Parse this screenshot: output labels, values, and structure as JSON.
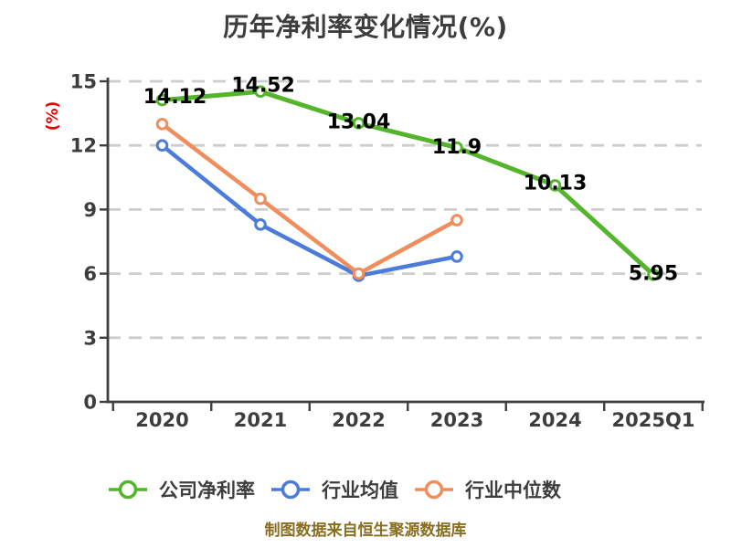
{
  "title": "历年净利率变化情况(%)",
  "source_note": "制图数据来自恒生聚源数据库",
  "colors": {
    "title": "#3d3d3d",
    "axis": "#3f3f3f",
    "tick_label": "#3d3d3d",
    "grid": "#cdcdcd",
    "data_label": "#000000",
    "y_axis_label": "#e60000",
    "footer": "#8a6e20",
    "background": "#ffffff",
    "marker_fill": "#ffffff"
  },
  "chart_data": {
    "type": "line",
    "title": "历年净利率变化情况(%)",
    "ylabel": "(%)",
    "xlabel": "",
    "categories": [
      "2020",
      "2021",
      "2022",
      "2023",
      "2024",
      "2025Q1"
    ],
    "series": [
      {
        "name": "公司净利率",
        "color": "#54b42c",
        "values": [
          14.12,
          14.52,
          13.04,
          11.9,
          10.13,
          5.95
        ],
        "point_labels": [
          "14.12",
          "14.52",
          "13.04",
          "11.9",
          "10.13",
          "5.95"
        ]
      },
      {
        "name": "行业均值",
        "color": "#4b7bdb",
        "values": [
          12.0,
          8.3,
          5.9,
          6.8,
          null,
          null
        ],
        "point_labels": []
      },
      {
        "name": "行业中位数",
        "color": "#ef8d5c",
        "values": [
          13.0,
          9.5,
          6.0,
          8.5,
          null,
          null
        ],
        "point_labels": []
      }
    ],
    "ylim": [
      0,
      15
    ],
    "y_ticks": [
      0,
      3,
      6,
      9,
      12,
      15
    ],
    "grid": "horizontal-dashed",
    "legend_position": "bottom"
  }
}
